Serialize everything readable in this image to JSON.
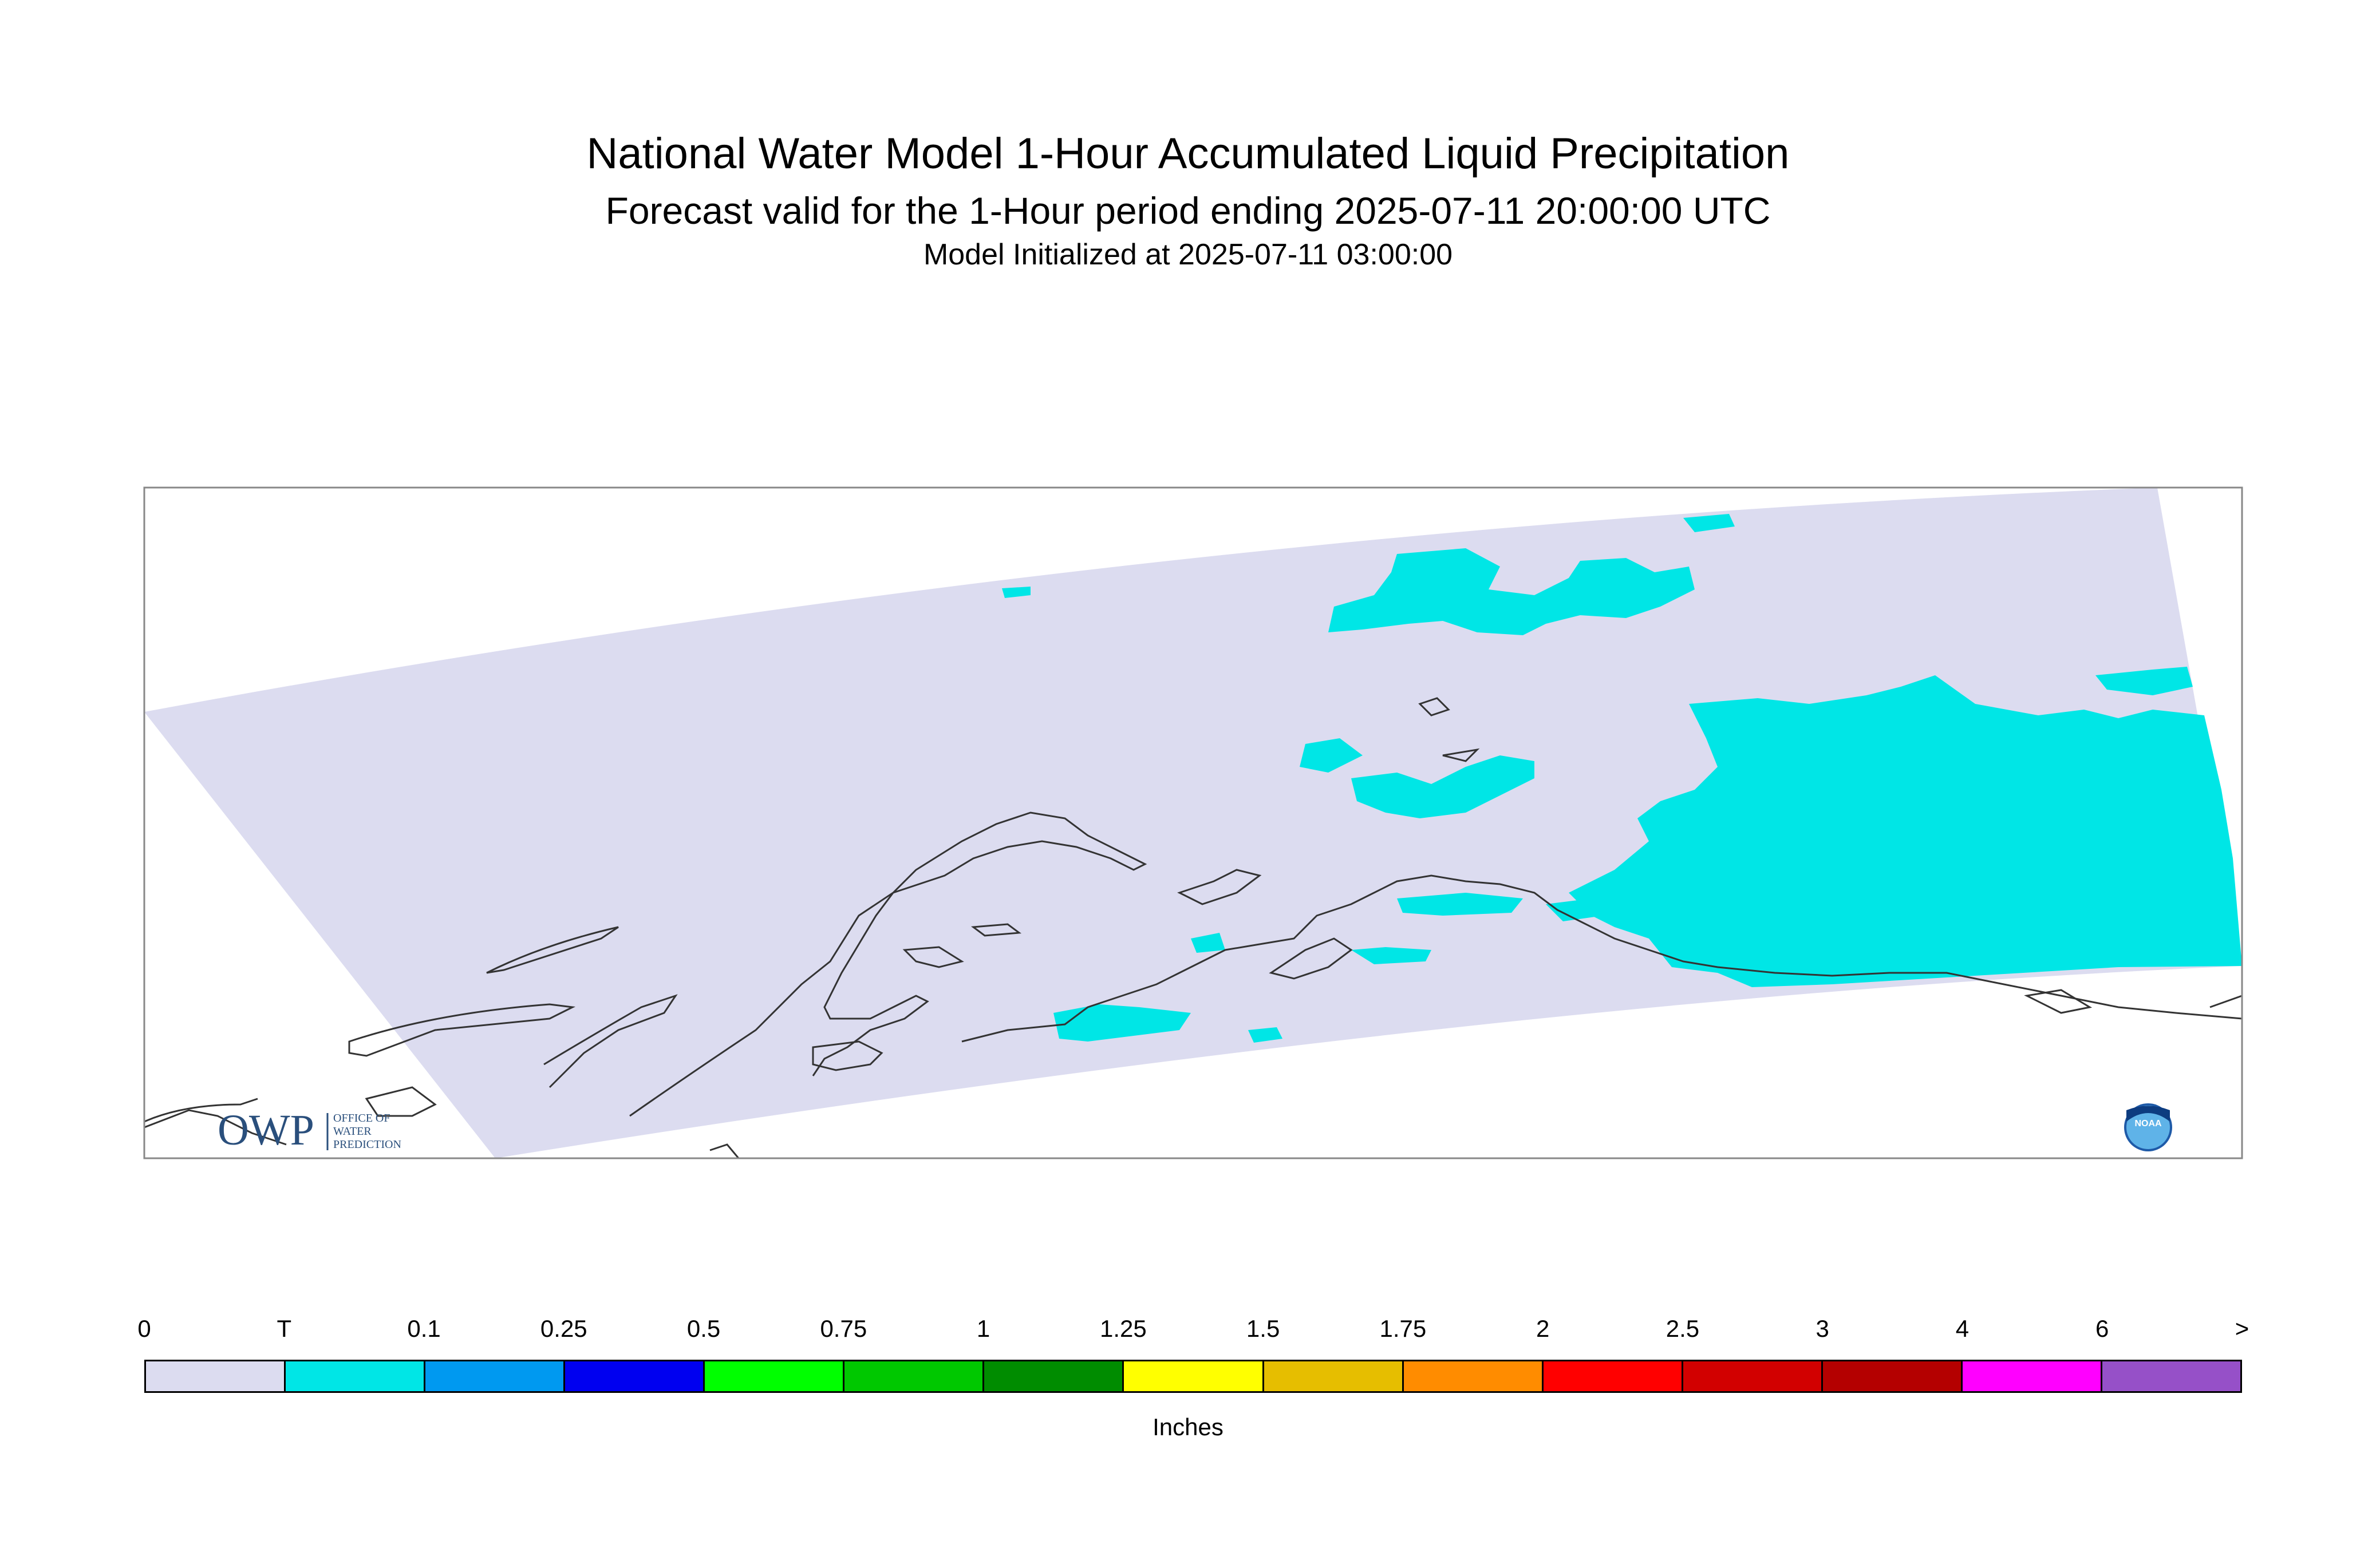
{
  "header": {
    "title": "National Water Model 1-Hour Accumulated Liquid Precipitation",
    "subtitle": "Forecast valid for the 1-Hour period ending 2025-07-11 20:00:00 UTC",
    "initialized": "Model Initialized at 2025-07-11 03:00:00"
  },
  "logos": {
    "owp_letters": "OWP",
    "owp_line1": "OFFICE OF",
    "owp_line2": "WATER",
    "owp_line3": "PREDICTION",
    "noaa_text": "NOAA"
  },
  "colors": {
    "domain_fill": "#dcdcf0",
    "trace": "#00e6e6",
    "coastline": "#333333"
  },
  "legend": {
    "unit": "Inches",
    "ticks": [
      "0",
      "T",
      "0.1",
      "0.25",
      "0.5",
      "0.75",
      "1",
      "1.25",
      "1.5",
      "1.75",
      "2",
      "2.5",
      "3",
      "4",
      "6",
      ">"
    ],
    "bins": [
      {
        "color": "#dcdcf0"
      },
      {
        "color": "#00e6e6"
      },
      {
        "color": "#0099f0"
      },
      {
        "color": "#0000f0"
      },
      {
        "color": "#00ff00"
      },
      {
        "color": "#00c800"
      },
      {
        "color": "#008c00"
      },
      {
        "color": "#ffff00"
      },
      {
        "color": "#e6be00"
      },
      {
        "color": "#ff8c00"
      },
      {
        "color": "#ff0000"
      },
      {
        "color": "#d20000"
      },
      {
        "color": "#b40000"
      },
      {
        "color": "#ff00ff"
      },
      {
        "color": "#9650c8"
      }
    ]
  }
}
